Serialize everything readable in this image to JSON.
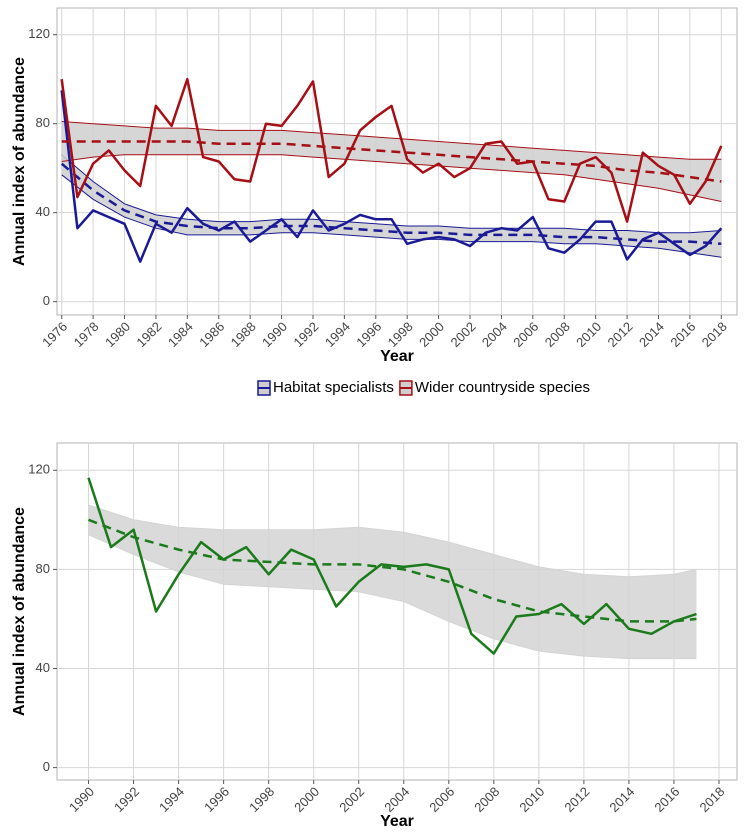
{
  "chart_data": [
    {
      "type": "line",
      "xlabel": "Year",
      "ylabel": "Annual index of abundance",
      "x": [
        1976,
        1977,
        1978,
        1979,
        1980,
        1981,
        1982,
        1983,
        1984,
        1985,
        1986,
        1987,
        1988,
        1989,
        1990,
        1991,
        1992,
        1993,
        1994,
        1995,
        1996,
        1997,
        1998,
        1999,
        2000,
        2001,
        2002,
        2003,
        2004,
        2005,
        2006,
        2007,
        2008,
        2009,
        2010,
        2011,
        2012,
        2013,
        2014,
        2015,
        2016,
        2017,
        2018
      ],
      "xlim": [
        1975.7,
        2019
      ],
      "xticks": [
        1976,
        1978,
        1980,
        1982,
        1984,
        1986,
        1988,
        1990,
        1992,
        1994,
        1996,
        1998,
        2000,
        2002,
        2004,
        2006,
        2008,
        2010,
        2012,
        2014,
        2016,
        2018
      ],
      "ylim": [
        -6,
        132
      ],
      "yticks": [
        0,
        40,
        80,
        120
      ],
      "grid": true,
      "legend": "bottom",
      "band_fill": "#cfcfcf",
      "series": [
        {
          "name": "Habitat specialists",
          "color": "#1a1a96",
          "values": [
            95,
            33,
            41,
            38,
            35,
            18,
            35,
            31,
            42,
            35,
            32,
            36,
            27,
            32,
            37,
            29,
            41,
            32,
            35,
            39,
            37,
            37,
            26,
            28,
            29,
            28,
            25,
            31,
            33,
            32,
            38,
            24,
            22,
            28,
            36,
            36,
            19,
            28,
            31,
            26,
            21,
            25,
            33
          ],
          "trend": {
            "x": [
              1976,
              1978,
              1980,
              1982,
              1984,
              1986,
              1988,
              1990,
              1992,
              1994,
              1996,
              1998,
              2000,
              2002,
              2004,
              2006,
              2008,
              2010,
              2012,
              2014,
              2016,
              2018
            ],
            "values": [
              62,
              50,
              41,
              36,
              34,
              33,
              33,
              34,
              34,
              33,
              32,
              31,
              31,
              30,
              30,
              30,
              29,
              29,
              28,
              27,
              27,
              26
            ],
            "upper": [
              66,
              54,
              44,
              39,
              37,
              36,
              36,
              37,
              37,
              36,
              35,
              34,
              34,
              33,
              33,
              33,
              33,
              32,
              32,
              31,
              31,
              32
            ],
            "lower": [
              57,
              46,
              38,
              33,
              30,
              30,
              30,
              31,
              31,
              30,
              29,
              28,
              28,
              27,
              27,
              27,
              26,
              26,
              25,
              24,
              22,
              20
            ]
          }
        },
        {
          "name": "Wider countryside species",
          "color": "#a50f15",
          "values": [
            100,
            47,
            62,
            68,
            59,
            52,
            88,
            79,
            100,
            65,
            63,
            55,
            54,
            80,
            79,
            88,
            99,
            56,
            62,
            77,
            83,
            88,
            64,
            58,
            62,
            56,
            60,
            71,
            72,
            62,
            63,
            46,
            45,
            62,
            65,
            58,
            36,
            67,
            61,
            57,
            44,
            54,
            70
          ],
          "trend": {
            "x": [
              1976,
              1978,
              1980,
              1982,
              1984,
              1986,
              1988,
              1990,
              1992,
              1994,
              1996,
              1998,
              2000,
              2002,
              2004,
              2006,
              2008,
              2010,
              2012,
              2014,
              2016,
              2018
            ],
            "values": [
              72,
              72,
              72,
              72,
              72,
              71,
              71,
              71,
              70,
              69,
              68,
              67,
              66,
              65,
              64,
              63,
              62,
              61,
              59,
              58,
              56,
              54
            ],
            "upper": [
              81,
              80,
              79,
              78,
              78,
              77,
              77,
              77,
              76,
              75,
              74,
              73,
              72,
              71,
              70,
              69,
              68,
              67,
              66,
              65,
              64,
              64
            ],
            "lower": [
              63,
              65,
              66,
              66,
              66,
              66,
              66,
              66,
              65,
              64,
              63,
              62,
              61,
              60,
              59,
              58,
              57,
              55,
              53,
              51,
              48,
              45
            ]
          }
        }
      ]
    },
    {
      "type": "line",
      "xlabel": "Year",
      "ylabel": "Annual index of abundance",
      "x": [
        1990,
        1991,
        1992,
        1993,
        1994,
        1995,
        1996,
        1997,
        1998,
        1999,
        2000,
        2001,
        2002,
        2003,
        2004,
        2005,
        2006,
        2007,
        2008,
        2009,
        2010,
        2011,
        2012,
        2013,
        2014,
        2015,
        2016,
        2017
      ],
      "xlim": [
        1988.6,
        2018.8
      ],
      "xticks": [
        1990,
        1992,
        1994,
        1996,
        1998,
        2000,
        2002,
        2004,
        2006,
        2008,
        2010,
        2012,
        2014,
        2016,
        2018
      ],
      "ylim": [
        -5,
        131
      ],
      "yticks": [
        0,
        40,
        80,
        120
      ],
      "grid": true,
      "band_fill": "#d4d4d4",
      "series": [
        {
          "color": "#1b7a1b",
          "values": [
            117,
            89,
            96,
            63,
            78,
            91,
            84,
            89,
            78,
            88,
            84,
            65,
            75,
            82,
            81,
            82,
            80,
            54,
            46,
            61,
            62,
            66,
            58,
            66,
            56,
            54,
            59,
            62
          ],
          "trend": {
            "x": [
              1990,
              1992,
              1994,
              1996,
              1998,
              2000,
              2002,
              2004,
              2006,
              2008,
              2010,
              2012,
              2014,
              2016,
              2017
            ],
            "values": [
              100,
              93,
              88,
              84,
              83,
              82,
              82,
              80,
              75,
              68,
              63,
              61,
              59,
              59,
              60
            ],
            "upper": [
              106,
              100,
              97,
              96,
              96,
              96,
              97,
              95,
              91,
              86,
              81,
              78,
              77,
              78,
              80
            ],
            "lower": [
              94,
              86,
              79,
              74,
              73,
              72,
              71,
              67,
              59,
              52,
              47,
              45,
              44,
              44,
              44
            ]
          }
        }
      ]
    }
  ]
}
